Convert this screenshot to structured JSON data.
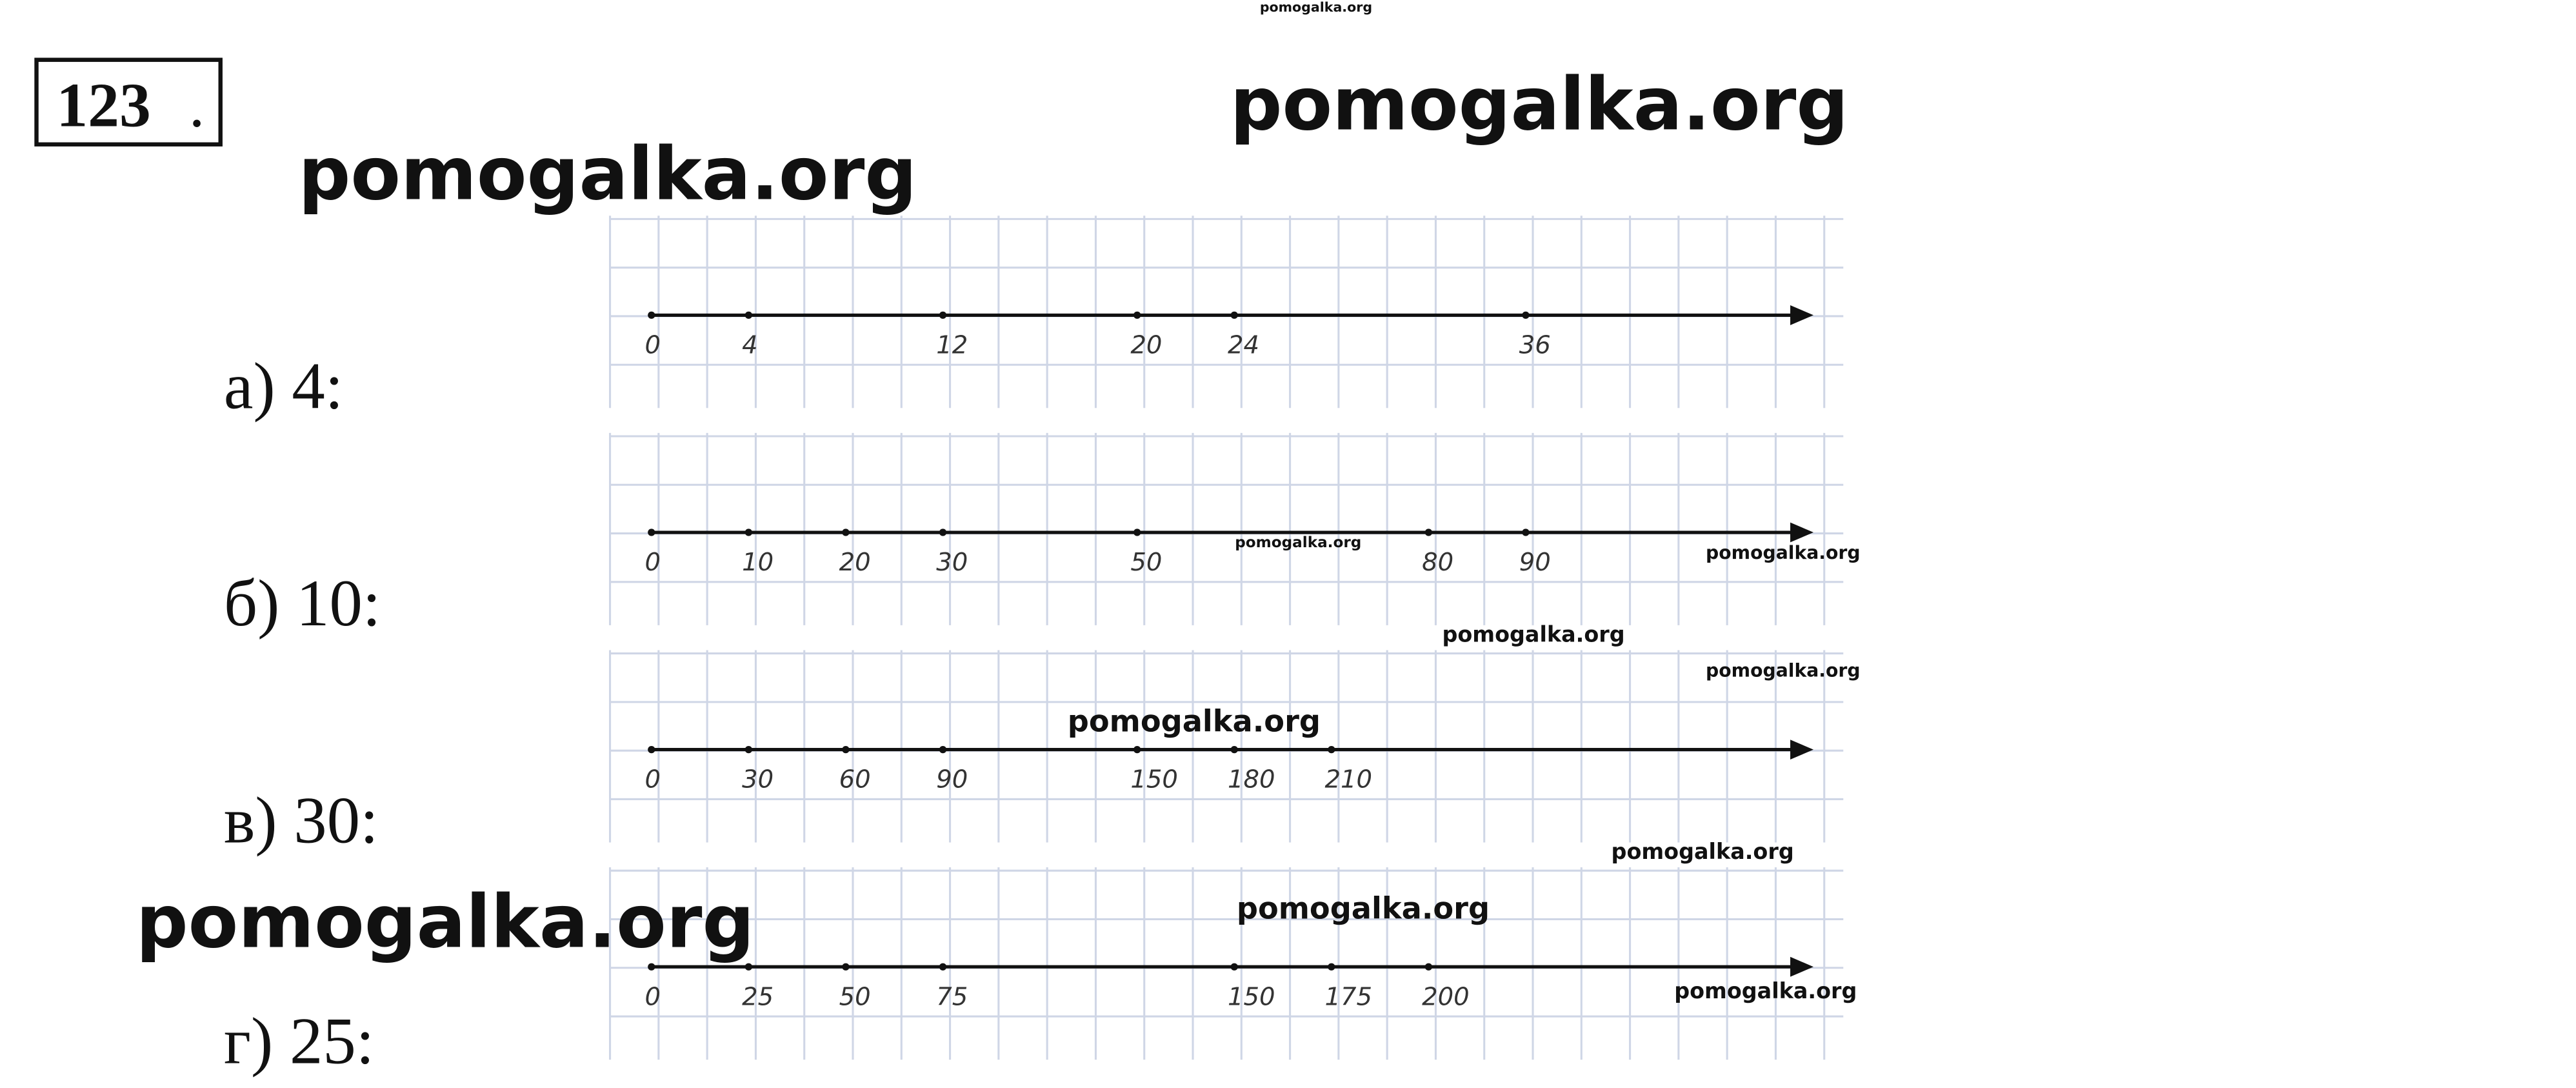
{
  "problem": {
    "number": "123",
    "period": "."
  },
  "items": [
    {
      "label": "а) 4:",
      "ticks": [
        0,
        4,
        12,
        20,
        24,
        36
      ]
    },
    {
      "label": "б) 10:",
      "ticks": [
        0,
        10,
        20,
        30,
        50,
        80,
        90
      ]
    },
    {
      "label": "в) 30:",
      "ticks": [
        0,
        30,
        60,
        90,
        150,
        180,
        210
      ]
    },
    {
      "label": "г) 25:",
      "ticks": [
        0,
        25,
        50,
        75,
        150,
        175,
        200
      ]
    }
  ],
  "watermarks": [
    "pomogalka.org",
    "pomogalka.org",
    "pomogalka.org",
    "pomogalka.org",
    "pomogalka.org",
    "pomogalka.org",
    "pomogalka.org",
    "pomogalka.org",
    "pomogalka.org",
    "pomogalka.org",
    "pomogalka.org",
    "pomogalka.org"
  ]
}
